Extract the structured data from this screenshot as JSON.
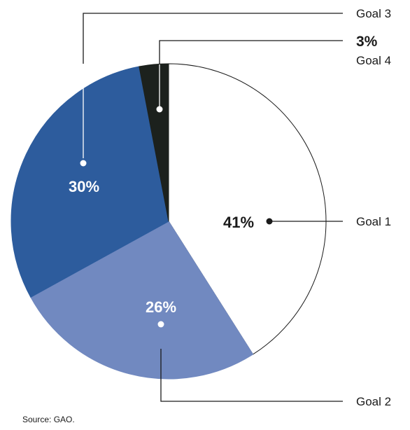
{
  "chart_data": {
    "type": "pie",
    "start_angle_deg": 0,
    "direction": "clockwise",
    "slices": [
      {
        "label": "Goal 1",
        "value": 41,
        "value_label": "41%",
        "color": "#ffffff"
      },
      {
        "label": "Goal 2",
        "value": 26,
        "value_label": "26%",
        "color": "#7189c0"
      },
      {
        "label": "Goal 3",
        "value": 30,
        "value_label": "30%",
        "color": "#2d5c9d"
      },
      {
        "label": "Goal 4",
        "value": 3,
        "value_label": "3%",
        "color": "#1c211d"
      }
    ],
    "source": "Source: GAO."
  }
}
